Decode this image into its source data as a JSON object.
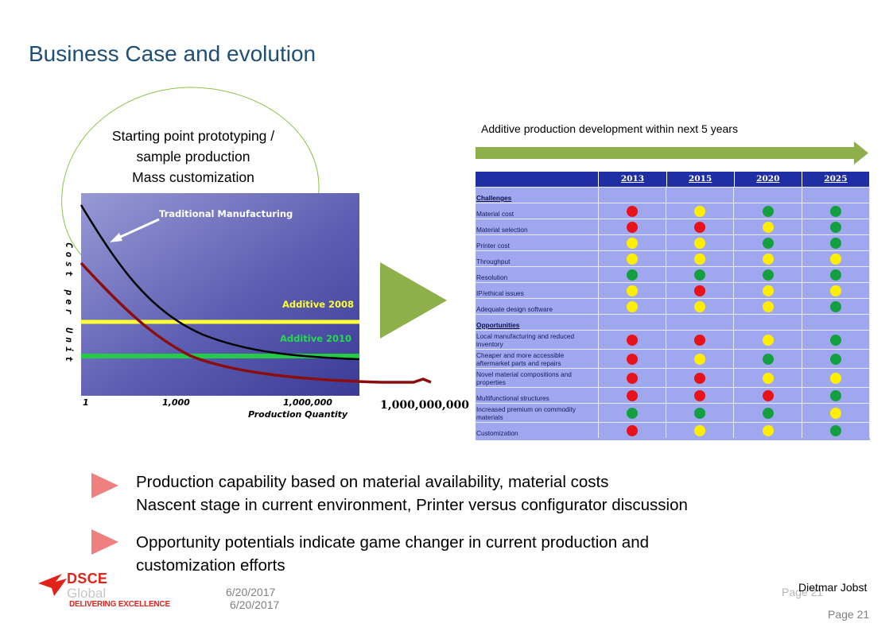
{
  "slide": {
    "title": "Business Case and evolution"
  },
  "bubble": {
    "lines": [
      "Starting point prototyping /",
      "sample production",
      "Mass customization"
    ]
  },
  "cost_chart": {
    "y_axis_label": "Cost per Unit",
    "x_axis_label": "Production Quantity",
    "x_ticks": [
      "1",
      "1,000",
      "1,000,000",
      "1,000,000,000"
    ],
    "labels": {
      "traditional": "Traditional Manufacturing",
      "additive_2008": "Additive 2008",
      "additive_2010": "Additive 2010"
    },
    "colors": {
      "background": "#5f60b4",
      "traditional": "#000000",
      "additive_2008": "#ffff33",
      "additive_2010": "#22cc44",
      "evolution_curve": "#8b0d0d"
    }
  },
  "roadmap": {
    "caption": "Additive production development within next 5 years",
    "years": [
      "2013",
      "2015",
      "2020",
      "2025"
    ],
    "colors": {
      "red": "#e8121a",
      "yellow": "#ffee00",
      "green": "#14a040",
      "header": "#1f2fa3",
      "body": "#9fa8ee"
    },
    "rows": [
      {
        "label": "Challenges",
        "section": true,
        "h": 20
      },
      {
        "label": "Material cost",
        "status": [
          "red",
          "yellow",
          "green",
          "green"
        ],
        "h": 20
      },
      {
        "label": "Material selection",
        "status": [
          "red",
          "red",
          "yellow",
          "green"
        ],
        "h": 20
      },
      {
        "label": "Printer cost",
        "status": [
          "yellow",
          "yellow",
          "green",
          "green"
        ],
        "h": 20
      },
      {
        "label": "Throughput",
        "status": [
          "yellow",
          "yellow",
          "yellow",
          "yellow"
        ],
        "h": 20
      },
      {
        "label": "Resolution",
        "status": [
          "green",
          "green",
          "green",
          "green"
        ],
        "h": 20
      },
      {
        "label": "IP/ethical issues",
        "status": [
          "yellow",
          "red",
          "yellow",
          "yellow"
        ],
        "h": 20
      },
      {
        "label": "Adequate design software",
        "status": [
          "yellow",
          "yellow",
          "yellow",
          "green"
        ],
        "h": 20
      },
      {
        "label": "Opportunities",
        "section": true,
        "h": 20
      },
      {
        "label": "Local manufacturing and reduced inventory",
        "status": [
          "red",
          "red",
          "yellow",
          "green"
        ],
        "h": 24
      },
      {
        "label": "Cheaper and more accessible aftermarket parts and repairs",
        "status": [
          "red",
          "yellow",
          "green",
          "green"
        ],
        "h": 24
      },
      {
        "label": "Novel material compositions and properties",
        "status": [
          "red",
          "red",
          "yellow",
          "yellow"
        ],
        "h": 24
      },
      {
        "label": "Multifunctional structures",
        "status": [
          "red",
          "red",
          "red",
          "green"
        ],
        "h": 20
      },
      {
        "label": "Increased premium on commodity materials",
        "status": [
          "green",
          "green",
          "green",
          "yellow"
        ],
        "h": 24
      },
      {
        "label": "Customization",
        "status": [
          "red",
          "yellow",
          "yellow",
          "green"
        ],
        "h": 20
      }
    ]
  },
  "bullets": [
    {
      "lines": [
        "Production capability based on material availability, material costs",
        "Nascent stage in current environment, Printer versus configurator discussion"
      ]
    },
    {
      "lines": [
        "Opportunity potentials indicate game changer in current production and",
        "customization efforts"
      ]
    }
  ],
  "footer": {
    "logo": {
      "name": "DSCE",
      "sub": "Global",
      "tagline": "DELIVERING EXCELLENCE"
    },
    "date_1": "6/20/2017",
    "date_2": "6/20/2017",
    "page_label_1": "Page 21",
    "author": "Dietmar Jobst",
    "page_label_2": "Page 21"
  },
  "accent_colors": {
    "title": "#1f4e79",
    "bullet": "#f08080",
    "green_arrow": "#8db04a",
    "bubble_outline": "#8bc34a"
  }
}
